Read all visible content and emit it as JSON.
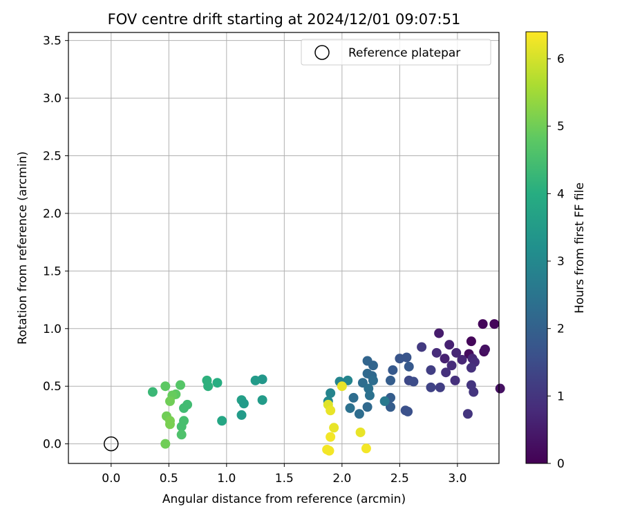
{
  "chart_data": {
    "type": "scatter",
    "title": "FOV centre drift starting at 2024/12/01 09:07:51",
    "xlabel": "Angular distance from reference (arcmin)",
    "ylabel": "Rotation from reference (arcmin)",
    "xlim": [
      -0.37,
      3.36
    ],
    "ylim": [
      -0.17,
      3.57
    ],
    "xticks": [
      0.0,
      0.5,
      1.0,
      1.5,
      2.0,
      2.5,
      3.0
    ],
    "yticks": [
      0.0,
      0.5,
      1.0,
      1.5,
      2.0,
      2.5,
      3.0,
      3.5
    ],
    "xtick_labels": [
      "0.0",
      "0.5",
      "1.0",
      "1.5",
      "2.0",
      "2.5",
      "3.0"
    ],
    "ytick_labels": [
      "0.0",
      "0.5",
      "1.0",
      "1.5",
      "2.0",
      "2.5",
      "3.0",
      "3.5"
    ],
    "grid": true,
    "legend": {
      "placement": "top-right",
      "entries": [
        "Reference platepar"
      ]
    },
    "reference": {
      "x": 0.0,
      "y": 0.0
    },
    "colorbar": {
      "label": "Hours from first FF file",
      "min": 0,
      "max": 6.4,
      "ticks": [
        0,
        1,
        2,
        3,
        4,
        5,
        6
      ],
      "tick_labels": [
        "0",
        "1",
        "2",
        "3",
        "4",
        "5",
        "6"
      ],
      "colormap": "viridis"
    },
    "points": [
      {
        "x": 3.12,
        "y": 0.89,
        "h": 0.1
      },
      {
        "x": 3.22,
        "y": 1.04,
        "h": 0.1
      },
      {
        "x": 3.32,
        "y": 1.04,
        "h": 0.1
      },
      {
        "x": 3.1,
        "y": 0.78,
        "h": 0.2
      },
      {
        "x": 3.23,
        "y": 0.8,
        "h": 0.2
      },
      {
        "x": 3.24,
        "y": 0.82,
        "h": 0.3
      },
      {
        "x": 3.37,
        "y": 0.48,
        "h": 0.3
      },
      {
        "x": 2.84,
        "y": 0.96,
        "h": 0.5
      },
      {
        "x": 2.93,
        "y": 0.86,
        "h": 0.6
      },
      {
        "x": 2.89,
        "y": 0.74,
        "h": 0.6
      },
      {
        "x": 2.99,
        "y": 0.79,
        "h": 0.7
      },
      {
        "x": 3.04,
        "y": 0.73,
        "h": 0.7
      },
      {
        "x": 2.82,
        "y": 0.79,
        "h": 0.8
      },
      {
        "x": 3.13,
        "y": 0.74,
        "h": 0.7
      },
      {
        "x": 3.15,
        "y": 0.71,
        "h": 0.8
      },
      {
        "x": 2.95,
        "y": 0.68,
        "h": 0.8
      },
      {
        "x": 3.12,
        "y": 0.66,
        "h": 0.9
      },
      {
        "x": 2.9,
        "y": 0.62,
        "h": 0.9
      },
      {
        "x": 2.98,
        "y": 0.55,
        "h": 0.9
      },
      {
        "x": 3.12,
        "y": 0.51,
        "h": 1.0
      },
      {
        "x": 3.14,
        "y": 0.45,
        "h": 1.0
      },
      {
        "x": 3.09,
        "y": 0.26,
        "h": 1.0
      },
      {
        "x": 2.69,
        "y": 0.84,
        "h": 1.1
      },
      {
        "x": 2.77,
        "y": 0.64,
        "h": 1.2
      },
      {
        "x": 2.85,
        "y": 0.49,
        "h": 1.2
      },
      {
        "x": 2.77,
        "y": 0.49,
        "h": 1.3
      },
      {
        "x": 2.58,
        "y": 0.55,
        "h": 1.4
      },
      {
        "x": 2.62,
        "y": 0.54,
        "h": 1.5
      },
      {
        "x": 2.5,
        "y": 0.74,
        "h": 1.7
      },
      {
        "x": 2.56,
        "y": 0.75,
        "h": 1.7
      },
      {
        "x": 2.58,
        "y": 0.67,
        "h": 1.8
      },
      {
        "x": 2.44,
        "y": 0.64,
        "h": 1.8
      },
      {
        "x": 2.42,
        "y": 0.55,
        "h": 1.9
      },
      {
        "x": 2.42,
        "y": 0.4,
        "h": 1.9
      },
      {
        "x": 2.42,
        "y": 0.32,
        "h": 1.9
      },
      {
        "x": 2.55,
        "y": 0.29,
        "h": 1.6
      },
      {
        "x": 2.57,
        "y": 0.28,
        "h": 1.6
      },
      {
        "x": 2.22,
        "y": 0.72,
        "h": 2.1
      },
      {
        "x": 2.27,
        "y": 0.68,
        "h": 2.1
      },
      {
        "x": 2.22,
        "y": 0.61,
        "h": 2.2
      },
      {
        "x": 2.26,
        "y": 0.59,
        "h": 2.2
      },
      {
        "x": 2.27,
        "y": 0.55,
        "h": 2.3
      },
      {
        "x": 2.18,
        "y": 0.53,
        "h": 2.3
      },
      {
        "x": 2.23,
        "y": 0.48,
        "h": 2.4
      },
      {
        "x": 2.24,
        "y": 0.42,
        "h": 2.4
      },
      {
        "x": 2.1,
        "y": 0.4,
        "h": 2.3
      },
      {
        "x": 2.22,
        "y": 0.32,
        "h": 2.2
      },
      {
        "x": 2.07,
        "y": 0.31,
        "h": 2.4
      },
      {
        "x": 2.15,
        "y": 0.26,
        "h": 2.3
      },
      {
        "x": 2.37,
        "y": 0.37,
        "h": 2.6
      },
      {
        "x": 2.05,
        "y": 0.55,
        "h": 2.9
      },
      {
        "x": 1.98,
        "y": 0.54,
        "h": 2.9
      },
      {
        "x": 1.9,
        "y": 0.44,
        "h": 2.9
      },
      {
        "x": 1.88,
        "y": 0.37,
        "h": 3.0
      },
      {
        "x": 1.31,
        "y": 0.56,
        "h": 3.4
      },
      {
        "x": 1.25,
        "y": 0.55,
        "h": 3.5
      },
      {
        "x": 1.31,
        "y": 0.38,
        "h": 3.5
      },
      {
        "x": 1.13,
        "y": 0.38,
        "h": 3.6
      },
      {
        "x": 1.15,
        "y": 0.35,
        "h": 3.5
      },
      {
        "x": 1.13,
        "y": 0.25,
        "h": 3.5
      },
      {
        "x": 0.96,
        "y": 0.2,
        "h": 3.8
      },
      {
        "x": 0.92,
        "y": 0.53,
        "h": 4.0
      },
      {
        "x": 0.83,
        "y": 0.55,
        "h": 4.1
      },
      {
        "x": 0.84,
        "y": 0.5,
        "h": 4.1
      },
      {
        "x": 0.66,
        "y": 0.34,
        "h": 4.4
      },
      {
        "x": 0.63,
        "y": 0.31,
        "h": 4.4
      },
      {
        "x": 0.63,
        "y": 0.2,
        "h": 4.5
      },
      {
        "x": 0.61,
        "y": 0.15,
        "h": 4.5
      },
      {
        "x": 0.61,
        "y": 0.08,
        "h": 4.6
      },
      {
        "x": 0.6,
        "y": 0.51,
        "h": 4.7
      },
      {
        "x": 0.47,
        "y": 0.5,
        "h": 4.8
      },
      {
        "x": 0.36,
        "y": 0.45,
        "h": 4.3
      },
      {
        "x": 0.56,
        "y": 0.43,
        "h": 4.8
      },
      {
        "x": 0.53,
        "y": 0.42,
        "h": 4.9
      },
      {
        "x": 0.51,
        "y": 0.37,
        "h": 5.0
      },
      {
        "x": 0.48,
        "y": 0.24,
        "h": 5.0
      },
      {
        "x": 0.51,
        "y": 0.2,
        "h": 5.1
      },
      {
        "x": 0.51,
        "y": 0.17,
        "h": 5.1
      },
      {
        "x": 0.47,
        "y": 0.0,
        "h": 5.0
      },
      {
        "x": 2.0,
        "y": 0.5,
        "h": 6.2
      },
      {
        "x": 1.88,
        "y": 0.34,
        "h": 6.1
      },
      {
        "x": 1.9,
        "y": 0.29,
        "h": 6.2
      },
      {
        "x": 1.93,
        "y": 0.14,
        "h": 6.2
      },
      {
        "x": 1.9,
        "y": 0.06,
        "h": 6.3
      },
      {
        "x": 2.16,
        "y": 0.1,
        "h": 6.2
      },
      {
        "x": 1.87,
        "y": -0.05,
        "h": 6.3
      },
      {
        "x": 1.89,
        "y": -0.06,
        "h": 6.3
      },
      {
        "x": 2.21,
        "y": -0.04,
        "h": 6.3
      }
    ]
  }
}
